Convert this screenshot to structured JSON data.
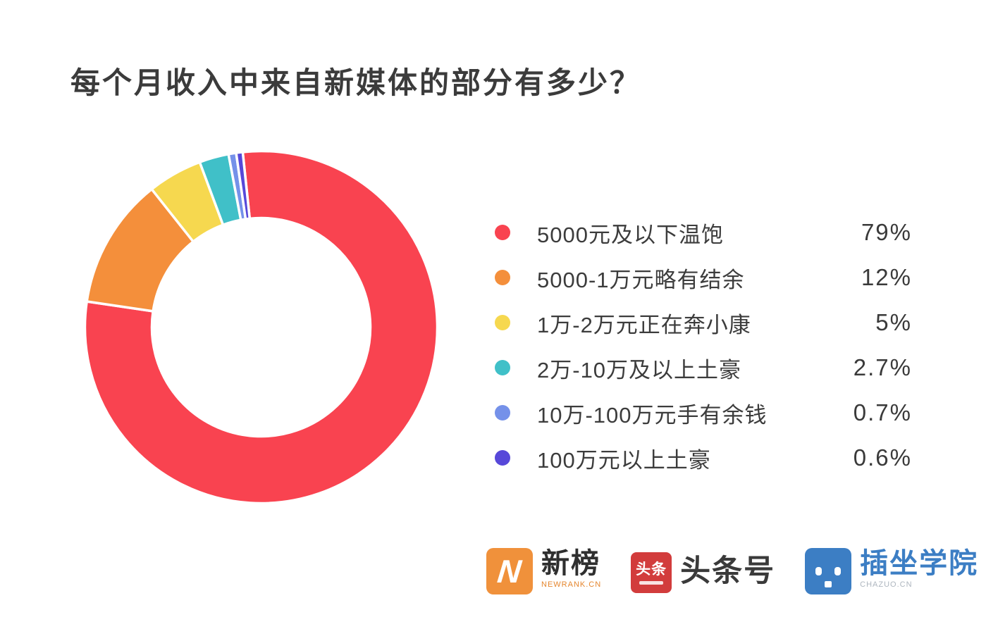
{
  "page": {
    "title": "每个月收入中来自新媒体的部分有多少？"
  },
  "chart_data": {
    "type": "pie",
    "variant": "donut",
    "title": "每个月收入中来自新媒体的部分有多少？",
    "legend_position": "right",
    "start_angle_deg": -6,
    "inner_radius_ratio": 0.62,
    "series": [
      {
        "label": "5000元及以下温饱",
        "value": 79,
        "display": "79%",
        "color": "#f94350"
      },
      {
        "label": "5000-1万元略有结余",
        "value": 12,
        "display": "12%",
        "color": "#f48f3b"
      },
      {
        "label": "1万-2万元正在奔小康",
        "value": 5,
        "display": "5%",
        "color": "#f6d84f"
      },
      {
        "label": "2万-10万及以上土豪",
        "value": 2.7,
        "display": "2.7%",
        "color": "#40c0c8"
      },
      {
        "label": "10万-100万元手有余钱",
        "value": 0.7,
        "display": "0.7%",
        "color": "#7591e9"
      },
      {
        "label": "100万元以上土豪",
        "value": 0.6,
        "display": "0.6%",
        "color": "#5748d9"
      }
    ]
  },
  "footer": {
    "logos": [
      {
        "name": "newrank",
        "glyph": "N",
        "text": "新榜",
        "subtext": "NEWRANK.CN"
      },
      {
        "name": "toutiao",
        "glyph": "头条",
        "text": "头条号"
      },
      {
        "name": "chazuo",
        "text": "插坐学院",
        "subtext": "CHAZUO.CN"
      }
    ]
  }
}
